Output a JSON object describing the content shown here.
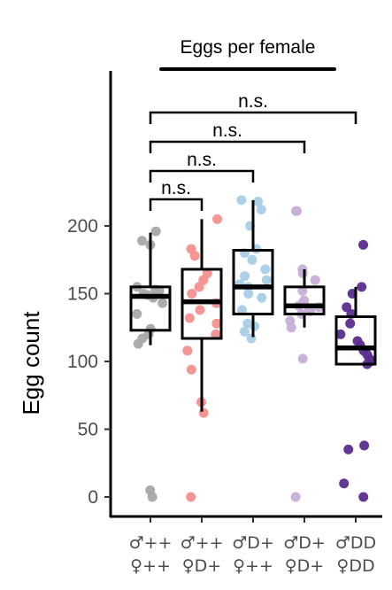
{
  "chart_data": {
    "type": "box",
    "title": "Eggs per female",
    "xlabel": "",
    "ylabel": "Egg count",
    "ylim": [
      -15,
      330
    ],
    "yticks": [
      0,
      50,
      100,
      150,
      200
    ],
    "grid": false,
    "legend": "none",
    "categories": [
      {
        "line1": "♂++",
        "line2": "♀++"
      },
      {
        "line1": "♂++",
        "line2": "♀D+"
      },
      {
        "line1": "♂D+",
        "line2": "♀++"
      },
      {
        "line1": "♂D+",
        "line2": "♀D+"
      },
      {
        "line1": "♂DD",
        "line2": "♀DD"
      }
    ],
    "series": [
      {
        "color": "#a8a8a8",
        "box": {
          "q1": 123,
          "median": 148,
          "q3": 155,
          "whisker_low": 112,
          "whisker_high": 195
        },
        "points": [
          5,
          0,
          113,
          117,
          120,
          124,
          135,
          143,
          147,
          149,
          150,
          152,
          153,
          155,
          186,
          189,
          196
        ]
      },
      {
        "color": "#f4908e",
        "box": {
          "q1": 117,
          "median": 144,
          "q3": 168,
          "whisker_low": 63,
          "whisker_high": 205
        },
        "points": [
          0,
          62,
          70,
          94,
          108,
          120,
          128,
          132,
          138,
          143,
          150,
          155,
          160,
          165,
          178,
          183,
          205
        ]
      },
      {
        "color": "#a6cde6",
        "box": {
          "q1": 135,
          "median": 155,
          "q3": 182,
          "whisker_low": 118,
          "whisker_high": 219
        },
        "points": [
          117,
          122,
          126,
          128,
          138,
          147,
          150,
          155,
          157,
          160,
          163,
          168,
          175,
          180,
          183,
          200,
          212,
          218,
          219
        ]
      },
      {
        "color": "#c7aed8",
        "box": {
          "q1": 135,
          "median": 141,
          "q3": 155,
          "whisker_low": 125,
          "whisker_high": 168
        },
        "points": [
          0,
          102,
          125,
          130,
          135,
          137,
          138,
          140,
          141,
          143,
          145,
          152,
          160,
          165,
          168,
          211,
          211
        ]
      },
      {
        "color": "#5b2d8e",
        "box": {
          "q1": 98,
          "median": 110,
          "q3": 133,
          "whisker_low": 98,
          "whisker_high": 155
        },
        "points": [
          0,
          10,
          35,
          38,
          98,
          100,
          102,
          105,
          108,
          112,
          115,
          120,
          128,
          135,
          140,
          150,
          155,
          186
        ]
      }
    ],
    "comparisons": [
      {
        "groups": [
          0,
          1
        ],
        "label": "n.s."
      },
      {
        "groups": [
          0,
          2
        ],
        "label": "n.s."
      },
      {
        "groups": [
          0,
          3
        ],
        "label": "n.s."
      },
      {
        "groups": [
          0,
          4
        ],
        "label": "n.s."
      }
    ]
  }
}
